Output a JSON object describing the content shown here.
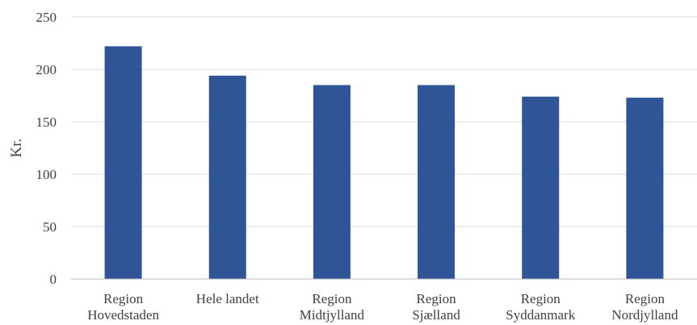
{
  "chart_data": {
    "type": "bar",
    "title": "",
    "xlabel": "",
    "ylabel": "Kr.",
    "ylim": [
      0,
      250
    ],
    "yticks": [
      0,
      50,
      100,
      150,
      200,
      250
    ],
    "grid": true,
    "legend": "none",
    "bar_color": "#2f5597",
    "categories": [
      [
        "Region",
        "Hovedstaden"
      ],
      [
        "Hele landet"
      ],
      [
        "Region",
        "Midtjylland"
      ],
      [
        "Region",
        "Sjælland"
      ],
      [
        "Region",
        "Syddanmark"
      ],
      [
        "Region",
        "Nordjylland"
      ]
    ],
    "values": [
      222,
      194,
      185,
      185,
      174,
      173
    ]
  }
}
